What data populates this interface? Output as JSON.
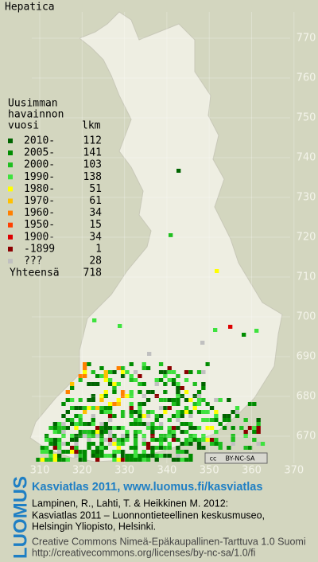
{
  "map": {
    "title": "Hepatica",
    "legend": {
      "heading": [
        "Uusimman",
        "havainnon",
        "vuosi"
      ],
      "count_heading": "lkm",
      "rows": [
        {
          "label": "2010-",
          "count": "112",
          "color": "#006400"
        },
        {
          "label": "2005-",
          "count": "141",
          "color": "#008c00"
        },
        {
          "label": "2000-",
          "count": "103",
          "color": "#1fbf1f"
        },
        {
          "label": "1990-",
          "count": "138",
          "color": "#3ee23e"
        },
        {
          "label": "1980-",
          "count": "51",
          "color": "#ffff00"
        },
        {
          "label": "1970-",
          "count": "61",
          "color": "#ffc000"
        },
        {
          "label": "1960-",
          "count": "34",
          "color": "#ff8000"
        },
        {
          "label": "1950-",
          "count": "15",
          "color": "#ff4000"
        },
        {
          "label": "1900-",
          "count": "34",
          "color": "#dd0000"
        },
        {
          "label": "-1899",
          "count": "1",
          "color": "#8c0000"
        },
        {
          "label": "???",
          "count": "28",
          "color": "#c0c0c0"
        }
      ],
      "total_label": "Yhteensä",
      "total": "718"
    },
    "yticks": [
      770,
      760,
      750,
      740,
      730,
      720,
      710,
      700,
      690,
      680,
      670
    ],
    "xticks": [
      310,
      320,
      330,
      340,
      350,
      360,
      370
    ],
    "badge": {
      "cc": "cc",
      "license": "BY-NC-SA"
    }
  },
  "footer": {
    "logo": "LUOMUS",
    "headline": "Kasviatlas 2011, www.luomus.fi/kasviatlas",
    "citation": [
      "Lampinen, R., Lahti, T. & Heikkinen M. 2012:",
      "Kasviatlas 2011 – Luonnontieteellinen keskusmuseo,",
      "Helsingin Yliopisto, Helsinki."
    ],
    "license": [
      "Creative Commons Nimeä-Epäkaupallinen-Tarttuva 1.0 Suomi",
      "http://creativecommons.org/licenses/by-nc-sa/1.0/fi"
    ]
  }
}
